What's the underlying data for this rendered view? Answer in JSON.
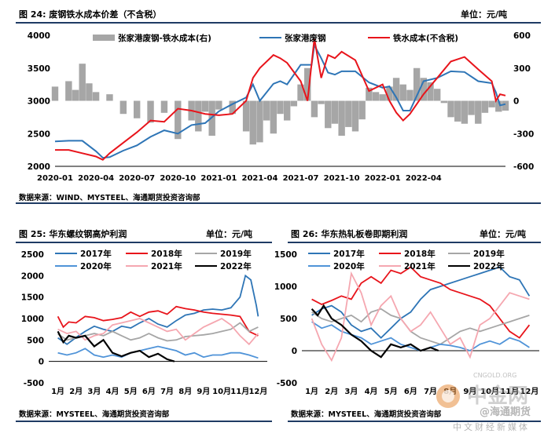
{
  "fig24": {
    "title": "图 24: 废钢铁水成本价差（不含税）",
    "unit": "单位：元/吨",
    "source": "数据来源：WIND、MYSTEEL、海通期货投资咨询部"
  },
  "fig25": {
    "title": "图 25: 华东螺纹钢高炉利润",
    "unit": "单位：元/吨",
    "source": "数据来源：MYSTEEL、海通期货投资咨询部"
  },
  "fig26": {
    "title": "图 26: 华东热轧板卷即期利润",
    "unit": "单位：元/吨",
    "source": "数据来源：MYSTEEL、海通期货投资咨询部"
  },
  "watermark": {
    "brand": "中金网",
    "tagline": "中文财经新媒体",
    "site": "CNGOLD.ORG",
    "handle": "@海通期货"
  },
  "chart_data": [
    {
      "type": "line",
      "id": "fig24",
      "x_tick_labels": [
        "2020-01",
        "2020-04",
        "2020-07",
        "2020-10",
        "2021-01",
        "2021-04",
        "2021-07",
        "2021-10",
        "2022-01",
        "2022-04"
      ],
      "x_range": [
        0,
        33
      ],
      "ylim": [
        2000,
        4000
      ],
      "yticks": [
        2000,
        2500,
        3000,
        3500,
        4000
      ],
      "y2lim": [
        -600,
        600
      ],
      "y2ticks": [
        -600,
        -300,
        0,
        300,
        600
      ],
      "legend": [
        "张家港废钢-铁水成本(右)",
        "张家港废钢",
        "铁水成本(不含税)"
      ],
      "colors": {
        "diff": "#a6a6a6",
        "scrap": "#2e75b6",
        "iron": "#e8141b"
      },
      "series": [
        {
          "name": "张家港废钢",
          "axis": "left",
          "x": [
            0,
            1,
            2,
            3,
            3.5,
            4,
            5,
            6,
            7,
            8,
            9,
            10,
            11,
            12,
            13,
            14,
            14.5,
            15,
            16,
            16.5,
            17,
            18,
            18.8,
            19,
            19.5,
            20,
            20.5,
            21,
            22,
            23,
            24,
            24.5,
            25,
            25.5,
            26,
            27,
            28,
            29,
            30,
            31,
            32,
            32.3,
            32.6,
            33
          ],
          "y": [
            2380,
            2390,
            2390,
            2230,
            2130,
            2140,
            2240,
            2320,
            2450,
            2550,
            2500,
            2630,
            2660,
            2840,
            2950,
            3050,
            3250,
            3000,
            3260,
            3300,
            3250,
            3550,
            3550,
            3850,
            3650,
            3430,
            3400,
            3450,
            3450,
            3280,
            3200,
            3220,
            3050,
            2850,
            2850,
            3300,
            3350,
            3450,
            3440,
            3300,
            3270,
            3130,
            2930,
            2950
          ]
        },
        {
          "name": "铁水成本(不含税)",
          "axis": "left",
          "x": [
            0,
            1,
            2,
            3,
            3.5,
            4,
            5,
            6,
            7,
            8,
            9,
            10,
            11,
            12,
            13,
            14,
            14.5,
            15,
            16,
            16.5,
            17,
            18,
            18.5,
            19,
            19.5,
            20,
            20.5,
            21,
            22,
            23,
            24,
            24.5,
            25,
            25.5,
            26,
            27,
            28,
            29,
            30,
            31,
            32,
            32.3,
            32.6,
            33
          ],
          "y": [
            2250,
            2250,
            2200,
            2150,
            2100,
            2200,
            2360,
            2520,
            2700,
            2680,
            2880,
            2850,
            2800,
            2780,
            2800,
            3000,
            3350,
            3500,
            3700,
            3650,
            3580,
            3300,
            3000,
            3950,
            3350,
            3700,
            3650,
            3750,
            3620,
            3150,
            3250,
            3000,
            2820,
            2700,
            2800,
            3100,
            3350,
            3600,
            3670,
            3480,
            3300,
            3000,
            3100,
            3080
          ]
        },
        {
          "name": "张家港废钢-铁水成本(右)",
          "axis": "right",
          "type": "area",
          "x": [
            0,
            1,
            1.5,
            2,
            2.5,
            3,
            4,
            5,
            6,
            7,
            8,
            9,
            10,
            10.5,
            11,
            11.5,
            12,
            13,
            14,
            14.5,
            15,
            15.5,
            16,
            16.5,
            17,
            17.5,
            18,
            18.5,
            19,
            19.5,
            20,
            20.5,
            21,
            21.5,
            22,
            22.5,
            23,
            23.5,
            24,
            24.5,
            25,
            25.5,
            26,
            26.5,
            27,
            27.5,
            28,
            28.5,
            29,
            29.5,
            30,
            30.5,
            31,
            31.5,
            32,
            32.5,
            33
          ],
          "y": [
            130,
            180,
            100,
            340,
            160,
            80,
            60,
            -120,
            -160,
            -200,
            -110,
            -350,
            -180,
            -280,
            -100,
            -320,
            -80,
            -120,
            -280,
            -400,
            -380,
            -180,
            -300,
            -120,
            -180,
            -50,
            150,
            300,
            -150,
            -30,
            -250,
            -210,
            -320,
            -240,
            -280,
            -170,
            120,
            80,
            60,
            130,
            210,
            150,
            100,
            300,
            210,
            170,
            110,
            -20,
            -150,
            -190,
            -210,
            -130,
            -210,
            -110,
            -60,
            -100,
            -90
          ]
        }
      ]
    },
    {
      "type": "line",
      "id": "fig25",
      "categories": [
        "1月",
        "2月",
        "3月",
        "4月",
        "5月",
        "6月",
        "7月",
        "8月",
        "9月",
        "10月",
        "11月",
        "12月"
      ],
      "ylim": [
        -500,
        2500
      ],
      "yticks": [
        -500,
        0,
        500,
        1000,
        1500,
        2000,
        2500
      ],
      "colors": {
        "2017年": "#2e75b6",
        "2018年": "#e8141b",
        "2019年": "#a6a6a6",
        "2020年": "#4f93d8",
        "2021年": "#f5a7b0",
        "2022年": "#000000"
      },
      "series": [
        {
          "name": "2017年",
          "x": [
            0,
            0.5,
            1,
            1.5,
            2,
            2.5,
            3,
            3.5,
            4,
            4.5,
            5,
            5.5,
            6,
            6.5,
            7,
            7.5,
            8,
            8.5,
            9,
            9.5,
            10,
            10.3,
            10.6,
            10.9,
            11
          ],
          "y": [
            550,
            400,
            560,
            700,
            820,
            750,
            700,
            820,
            780,
            900,
            1000,
            870,
            800,
            950,
            1080,
            1120,
            1200,
            1220,
            1200,
            1250,
            1500,
            2000,
            1900,
            1300,
            1050
          ]
        },
        {
          "name": "2018年",
          "x": [
            0,
            0.3,
            0.6,
            1,
            1.5,
            2,
            2.5,
            3,
            3.5,
            4,
            4.5,
            5,
            5.5,
            6,
            6.5,
            7,
            7.5,
            8,
            8.5,
            9,
            9.5,
            10,
            10.5,
            11
          ],
          "y": [
            1050,
            800,
            920,
            900,
            1050,
            1020,
            950,
            980,
            1020,
            1150,
            1050,
            1150,
            1180,
            1100,
            1280,
            1230,
            1200,
            1150,
            1120,
            1100,
            1080,
            1050,
            700,
            600
          ]
        },
        {
          "name": "2019年",
          "x": [
            0,
            0.5,
            1,
            1.5,
            2,
            2.5,
            3,
            3.5,
            4,
            4.5,
            5,
            5.5,
            6,
            6.5,
            7,
            7.5,
            8,
            8.5,
            9,
            9.5,
            10,
            10.5,
            11
          ],
          "y": [
            640,
            500,
            550,
            600,
            650,
            600,
            700,
            600,
            500,
            550,
            650,
            550,
            480,
            500,
            580,
            600,
            620,
            650,
            700,
            750,
            900,
            700,
            800
          ]
        },
        {
          "name": "2020年",
          "x": [
            0,
            0.5,
            1,
            1.5,
            2,
            2.5,
            3,
            3.5,
            4,
            4.5,
            5,
            5.5,
            6,
            6.5,
            7,
            7.5,
            8,
            8.5,
            9,
            9.5,
            10,
            10.5,
            11
          ],
          "y": [
            200,
            150,
            200,
            300,
            150,
            100,
            150,
            100,
            200,
            250,
            300,
            350,
            300,
            250,
            150,
            200,
            100,
            150,
            150,
            200,
            200,
            150,
            80
          ]
        },
        {
          "name": "2021年",
          "x": [
            0,
            0.5,
            1,
            1.5,
            2,
            2.5,
            3,
            3.5,
            4,
            4.5,
            5,
            5.5,
            6,
            6.5,
            7,
            7.5,
            8,
            8.5,
            9,
            9.5,
            10,
            10.5,
            11
          ],
          "y": [
            750,
            650,
            700,
            500,
            600,
            650,
            850,
            900,
            950,
            1000,
            900,
            800,
            700,
            750,
            500,
            650,
            800,
            900,
            1000,
            850,
            600,
            400,
            650
          ]
        },
        {
          "name": "2022年",
          "x": [
            0,
            0.3,
            0.6,
            1,
            1.5,
            2,
            2.5,
            3,
            3.5,
            4,
            4.5,
            5,
            5.5,
            6,
            6.4
          ],
          "y": [
            700,
            450,
            600,
            550,
            600,
            350,
            500,
            200,
            120,
            200,
            250,
            100,
            180,
            50,
            0
          ]
        }
      ]
    },
    {
      "type": "line",
      "id": "fig26",
      "categories": [
        "1月",
        "2月",
        "3月",
        "4月",
        "5月",
        "6月",
        "7月",
        "8月",
        "9月",
        "10月",
        "11月",
        "12月"
      ],
      "ylim": [
        -500,
        1500
      ],
      "yticks": [
        -500,
        0,
        500,
        1000,
        1500
      ],
      "colors": {
        "2017年": "#2e75b6",
        "2018年": "#e8141b",
        "2019年": "#a6a6a6",
        "2020年": "#4f93d8",
        "2021年": "#f5a7b0",
        "2022年": "#000000"
      },
      "series": [
        {
          "name": "2017年",
          "x": [
            0,
            0.5,
            1,
            1.5,
            2,
            2.5,
            3,
            3.5,
            4,
            4.5,
            5,
            5.5,
            6,
            6.5,
            7,
            7.5,
            8,
            8.5,
            9,
            9.5,
            10,
            10.5,
            11
          ],
          "y": [
            550,
            650,
            700,
            600,
            400,
            300,
            350,
            200,
            350,
            500,
            600,
            800,
            950,
            1000,
            1050,
            1100,
            1150,
            1200,
            1250,
            1300,
            1150,
            1100,
            850
          ]
        },
        {
          "name": "2018年",
          "x": [
            0,
            0.5,
            1,
            1.5,
            2,
            2.5,
            3,
            3.5,
            4,
            4.5,
            5,
            5.5,
            6,
            6.5,
            7,
            7.5,
            8,
            8.5,
            9,
            9.5,
            10,
            10.5,
            11
          ],
          "y": [
            800,
            720,
            780,
            850,
            800,
            1050,
            1150,
            1050,
            1250,
            1200,
            1300,
            1150,
            1100,
            1050,
            950,
            900,
            850,
            800,
            700,
            500,
            300,
            200,
            400
          ]
        },
        {
          "name": "2019年",
          "x": [
            0,
            0.5,
            1,
            1.5,
            2,
            2.5,
            3,
            3.5,
            4,
            4.5,
            5,
            5.5,
            6,
            6.5,
            7,
            7.5,
            8,
            8.5,
            9,
            9.5,
            10,
            10.5,
            11
          ],
          "y": [
            600,
            500,
            450,
            500,
            550,
            450,
            600,
            650,
            550,
            500,
            300,
            200,
            150,
            100,
            200,
            300,
            350,
            300,
            350,
            400,
            450,
            500,
            550
          ]
        },
        {
          "name": "2020年",
          "x": [
            0,
            0.5,
            1,
            1.5,
            2,
            2.5,
            3,
            3.5,
            4,
            4.5,
            5,
            5.5,
            6,
            6.5,
            7,
            7.5,
            8,
            8.5,
            9,
            9.5,
            10,
            10.5,
            11
          ],
          "y": [
            450,
            350,
            400,
            300,
            250,
            200,
            100,
            150,
            200,
            100,
            50,
            0,
            50,
            100,
            80,
            50,
            0,
            100,
            150,
            100,
            200,
            150,
            50
          ]
        },
        {
          "name": "2021年",
          "x": [
            0,
            0.5,
            1,
            1.5,
            2,
            2.5,
            3,
            3.5,
            4,
            4.5,
            5,
            5.5,
            6,
            6.5,
            7,
            7.5,
            8,
            8.5,
            9,
            9.5,
            10,
            10.5,
            11
          ],
          "y": [
            500,
            100,
            -150,
            200,
            1200,
            900,
            400,
            700,
            850,
            500,
            300,
            400,
            600,
            350,
            100,
            200,
            -100,
            400,
            500,
            700,
            900,
            850,
            800
          ]
        },
        {
          "name": "2022年",
          "x": [
            0,
            0.3,
            0.6,
            1,
            1.5,
            2,
            2.5,
            3,
            3.5,
            4,
            4.5,
            5,
            5.5,
            6,
            6.4
          ],
          "y": [
            650,
            550,
            700,
            500,
            400,
            250,
            150,
            0,
            -100,
            100,
            50,
            100,
            0,
            50,
            0
          ]
        }
      ]
    }
  ]
}
